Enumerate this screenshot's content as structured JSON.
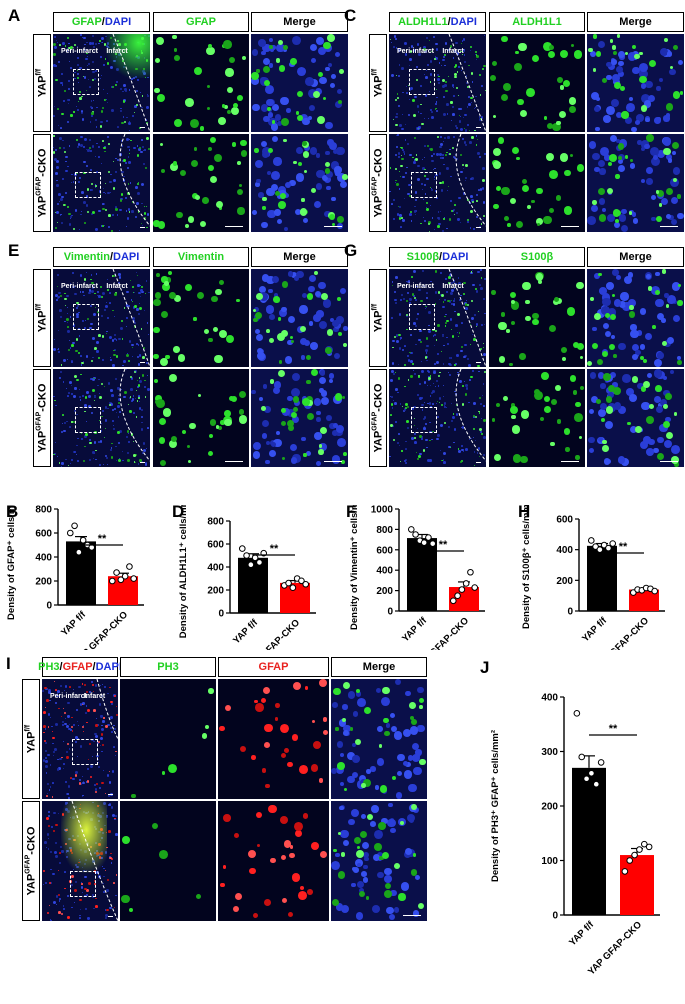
{
  "panels": {
    "A": {
      "letter": "A",
      "headers": [
        {
          "parts": [
            [
              "GFAP",
              "g"
            ],
            [
              "/",
              "k"
            ],
            [
              "DAPI",
              "b"
            ]
          ]
        },
        {
          "parts": [
            [
              "GFAP",
              "g"
            ]
          ]
        },
        {
          "parts": [
            [
              "Merge",
              "k"
            ]
          ]
        }
      ]
    },
    "C": {
      "letter": "C",
      "headers": [
        {
          "parts": [
            [
              "ALDH1L1",
              "g"
            ],
            [
              "/",
              "k"
            ],
            [
              "DAPI",
              "b"
            ]
          ]
        },
        {
          "parts": [
            [
              "ALDH1L1",
              "g"
            ]
          ]
        },
        {
          "parts": [
            [
              "Merge",
              "k"
            ]
          ]
        }
      ]
    },
    "E": {
      "letter": "E",
      "headers": [
        {
          "parts": [
            [
              "Vimentin",
              "g"
            ],
            [
              "/",
              "k"
            ],
            [
              "DAPI",
              "b"
            ]
          ]
        },
        {
          "parts": [
            [
              "Vimentin",
              "g"
            ]
          ]
        },
        {
          "parts": [
            [
              "Merge",
              "k"
            ]
          ]
        }
      ]
    },
    "G": {
      "letter": "G",
      "headers": [
        {
          "parts": [
            [
              "S100β",
              "g"
            ],
            [
              "/",
              "k"
            ],
            [
              "DAPI",
              "b"
            ]
          ]
        },
        {
          "parts": [
            [
              "S100β",
              "g"
            ]
          ]
        },
        {
          "parts": [
            [
              "Merge",
              "k"
            ]
          ]
        }
      ]
    },
    "I": {
      "letter": "I",
      "headers": [
        {
          "parts": [
            [
              "PH3",
              "g"
            ],
            [
              "/",
              "k"
            ],
            [
              "GFAP",
              "r"
            ],
            [
              "/",
              "k"
            ],
            [
              "DAPI",
              "b"
            ]
          ]
        },
        {
          "parts": [
            [
              "PH3",
              "g"
            ]
          ]
        },
        {
          "parts": [
            [
              "GFAP",
              "r"
            ]
          ]
        },
        {
          "parts": [
            [
              "Merge",
              "k"
            ]
          ]
        }
      ]
    }
  },
  "row_labels": {
    "wt_base": "YAP",
    "wt_sup": "f/f",
    "cko_base": "YAP",
    "cko_sup": "GFAP",
    "cko_suffix": "-CKO"
  },
  "annotations": {
    "peri": "Peri-infarct",
    "infarct": "Infarct"
  },
  "chart_data": [
    {
      "panel": "B",
      "type": "bar",
      "ylabel": "Density of GFAP⁺ cells/mm²",
      "categories": [
        "YAP f/f",
        "YAP GFAP-CKO"
      ],
      "values": [
        530,
        240
      ],
      "errors": [
        40,
        25
      ],
      "colors": [
        "#000000",
        "#ff0000"
      ],
      "points": [
        [
          600,
          660,
          440,
          540,
          500,
          480
        ],
        [
          200,
          270,
          210,
          240,
          320,
          220
        ]
      ],
      "ylim": [
        0,
        800
      ],
      "yticks": [
        0,
        200,
        400,
        600,
        800
      ],
      "significance": "**"
    },
    {
      "panel": "D",
      "type": "bar",
      "ylabel": "Density of ALDH1L1⁺ cells/mm²",
      "categories": [
        "YAP f/f",
        "YAP GFAP-CKO"
      ],
      "values": [
        480,
        262
      ],
      "errors": [
        35,
        20
      ],
      "colors": [
        "#000000",
        "#ff0000"
      ],
      "points": [
        [
          560,
          500,
          420,
          480,
          440,
          520
        ],
        [
          240,
          260,
          220,
          300,
          280,
          250
        ]
      ],
      "ylim": [
        0,
        800
      ],
      "yticks": [
        0,
        200,
        400,
        600,
        800
      ],
      "significance": "**"
    },
    {
      "panel": "F",
      "type": "bar",
      "ylabel": "Density of Vimentin⁺ cells/mm²",
      "categories": [
        "YAP f/f",
        "YAP GFAP-CKO"
      ],
      "values": [
        715,
        235
      ],
      "errors": [
        35,
        50
      ],
      "colors": [
        "#000000",
        "#ff0000"
      ],
      "points": [
        [
          800,
          750,
          690,
          670,
          720,
          660
        ],
        [
          100,
          150,
          210,
          270,
          380,
          230
        ]
      ],
      "ylim": [
        0,
        1000
      ],
      "yticks": [
        0,
        200,
        400,
        600,
        800,
        1000
      ],
      "significance": "**"
    },
    {
      "panel": "H",
      "type": "bar",
      "ylabel": "Density of S100β⁺ cells/mm²",
      "categories": [
        "YAP f/f",
        "YAP GFAP-CKO"
      ],
      "values": [
        425,
        140
      ],
      "errors": [
        15,
        8
      ],
      "colors": [
        "#000000",
        "#ff0000"
      ],
      "points": [
        [
          460,
          420,
          400,
          430,
          410,
          440
        ],
        [
          120,
          140,
          135,
          150,
          145,
          130
        ]
      ],
      "ylim": [
        0,
        600
      ],
      "yticks": [
        0,
        200,
        400,
        600
      ],
      "significance": "**"
    },
    {
      "panel": "J",
      "type": "bar",
      "ylabel": "Density of PH3⁺ GFAP⁺ cells/mm²",
      "categories": [
        "YAP f/f",
        "YAP GFAP-CKO"
      ],
      "values": [
        270,
        110
      ],
      "errors": [
        22,
        12
      ],
      "colors": [
        "#000000",
        "#ff0000"
      ],
      "points": [
        [
          370,
          290,
          250,
          260,
          240,
          280
        ],
        [
          80,
          100,
          110,
          120,
          130,
          125
        ]
      ],
      "ylim": [
        0,
        400
      ],
      "yticks": [
        0,
        100,
        200,
        300,
        400
      ],
      "significance": "**"
    }
  ]
}
